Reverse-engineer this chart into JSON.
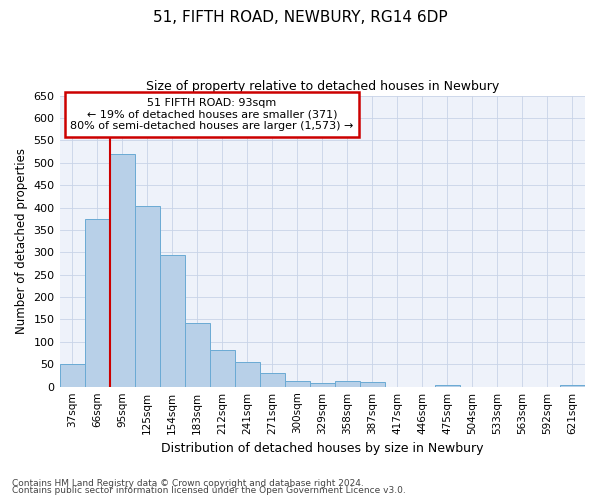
{
  "title1": "51, FIFTH ROAD, NEWBURY, RG14 6DP",
  "title2": "Size of property relative to detached houses in Newbury",
  "xlabel": "Distribution of detached houses by size in Newbury",
  "ylabel": "Number of detached properties",
  "categories": [
    "37sqm",
    "66sqm",
    "95sqm",
    "125sqm",
    "154sqm",
    "183sqm",
    "212sqm",
    "241sqm",
    "271sqm",
    "300sqm",
    "329sqm",
    "358sqm",
    "387sqm",
    "417sqm",
    "446sqm",
    "475sqm",
    "504sqm",
    "533sqm",
    "563sqm",
    "592sqm",
    "621sqm"
  ],
  "values": [
    50,
    375,
    520,
    403,
    293,
    143,
    83,
    55,
    30,
    13,
    8,
    13,
    10,
    0,
    0,
    3,
    0,
    0,
    0,
    0,
    3
  ],
  "bar_color": "#b8d0e8",
  "bar_edgecolor": "#6aaad4",
  "highlight_index": 2,
  "highlight_color": "#cc0000",
  "ylim": [
    0,
    650
  ],
  "yticks": [
    0,
    50,
    100,
    150,
    200,
    250,
    300,
    350,
    400,
    450,
    500,
    550,
    600,
    650
  ],
  "annotation_title": "51 FIFTH ROAD: 93sqm",
  "annotation_line1": "← 19% of detached houses are smaller (371)",
  "annotation_line2": "80% of semi-detached houses are larger (1,573) →",
  "annotation_box_color": "#cc0000",
  "footer1": "Contains HM Land Registry data © Crown copyright and database right 2024.",
  "footer2": "Contains public sector information licensed under the Open Government Licence v3.0.",
  "grid_color": "#c8d4e8",
  "bg_color": "#eef2fa"
}
